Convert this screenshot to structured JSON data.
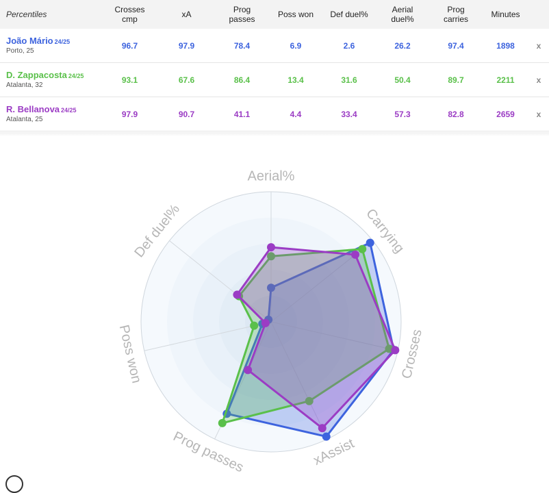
{
  "table": {
    "header_label": "Percentiles",
    "columns": [
      "Crosses\ncmp",
      "xA",
      "Prog\npasses",
      "Poss won",
      "Def duel%",
      "Aerial\nduel%",
      "Prog\ncarries",
      "Minutes"
    ],
    "remove_label": "x",
    "players": [
      {
        "name": "João Mário",
        "season": "24/25",
        "meta": "Porto, 25",
        "color": "#3d63de",
        "values": [
          "96.7",
          "97.9",
          "78.4",
          "6.9",
          "2.6",
          "26.2",
          "97.4",
          "1898"
        ]
      },
      {
        "name": "D. Zappacosta",
        "season": "24/25",
        "meta": "Atalanta, 32",
        "color": "#5ac04a",
        "values": [
          "93.1",
          "67.6",
          "86.4",
          "13.4",
          "31.6",
          "50.4",
          "89.7",
          "2211"
        ]
      },
      {
        "name": "R. Bellanova",
        "season": "24/25",
        "meta": "Atalanta, 25",
        "color": "#9b3cc4",
        "values": [
          "97.9",
          "90.7",
          "41.1",
          "4.4",
          "33.4",
          "57.3",
          "82.8",
          "2659"
        ]
      }
    ]
  },
  "chart_data": {
    "type": "radar",
    "axes": [
      "Aerial%",
      "Carrying",
      "Crosses",
      "xAssist",
      "Prog passes",
      "Poss won",
      "Def duel%"
    ],
    "range": [
      0,
      100
    ],
    "series": [
      {
        "name": "João Mário",
        "color": "#3d63de",
        "values": [
          26.2,
          97.4,
          96.7,
          97.9,
          78.4,
          6.9,
          2.6
        ]
      },
      {
        "name": "D. Zappacosta",
        "color": "#5ac04a",
        "values": [
          50.4,
          89.7,
          93.1,
          67.6,
          86.4,
          13.4,
          31.6
        ]
      },
      {
        "name": "R. Bellanova",
        "color": "#9b3cc4",
        "values": [
          57.3,
          82.8,
          97.9,
          90.7,
          41.1,
          4.4,
          33.4
        ]
      }
    ]
  }
}
